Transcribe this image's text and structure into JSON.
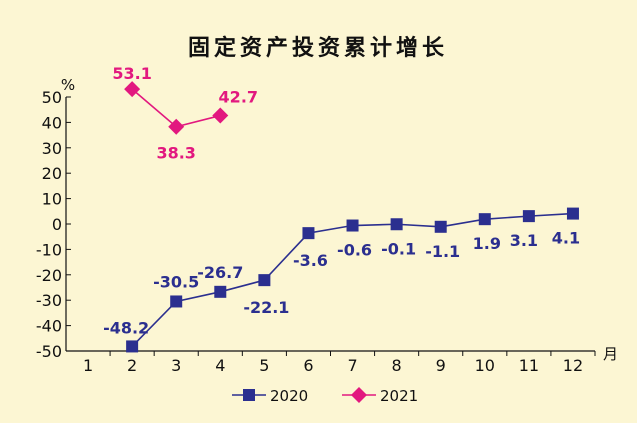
{
  "chart_data": {
    "type": "line",
    "title": "固定资产投资累计增长",
    "ylabel": "%",
    "xlabel": "月",
    "ylim": [
      -50,
      50
    ],
    "yticks": [
      50,
      40,
      30,
      20,
      10,
      0,
      -10,
      -20,
      -30,
      -40,
      -50
    ],
    "ytick_labels": [
      "50",
      "40",
      "30",
      "20",
      "10",
      "0",
      "-10",
      "-20",
      "-30",
      "-40",
      "-50"
    ],
    "x_categories": [
      "1",
      "2",
      "3",
      "4",
      "5",
      "6",
      "7",
      "8",
      "9",
      "10",
      "11",
      "12"
    ],
    "grid": false,
    "legend_position": "bottom",
    "series": [
      {
        "name": "2020",
        "color": "#2b2f8f",
        "marker": "square",
        "x": [
          "2",
          "3",
          "4",
          "5",
          "6",
          "7",
          "8",
          "9",
          "10",
          "11",
          "12"
        ],
        "values": [
          -48.2,
          -30.5,
          -26.7,
          -22.1,
          -3.6,
          -0.6,
          -0.1,
          -1.1,
          1.9,
          3.1,
          4.1
        ],
        "labels": [
          "-48.2",
          "-30.5",
          "-26.7",
          "-22.1",
          "-3.6",
          "-0.6",
          "-0.1",
          "-1.1",
          "1.9",
          "3.1",
          "4.1"
        ]
      },
      {
        "name": "2021",
        "color": "#e2187f",
        "marker": "diamond",
        "x": [
          "2",
          "3",
          "4"
        ],
        "values": [
          53.1,
          38.3,
          42.7
        ],
        "labels": [
          "53.1",
          "38.3",
          "42.7"
        ]
      }
    ]
  }
}
